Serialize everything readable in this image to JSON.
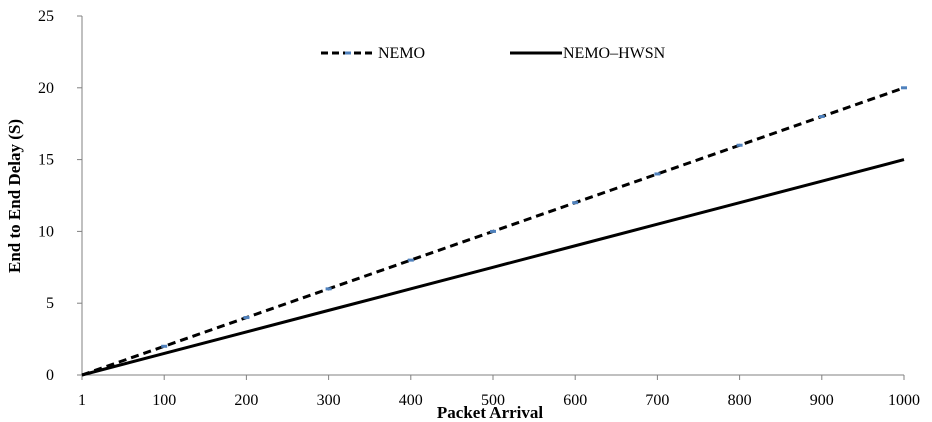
{
  "chart_data": {
    "type": "line",
    "title": "",
    "xlabel": "Packet Arrival",
    "ylabel": "End to End Delay (S)",
    "x_ticks": [
      "1",
      "100",
      "200",
      "300",
      "400",
      "500",
      "600",
      "700",
      "800",
      "900",
      "1000"
    ],
    "y_ticks": [
      "0",
      "5",
      "10",
      "15",
      "20",
      "25"
    ],
    "ylim": [
      0,
      25
    ],
    "grid": false,
    "legend_position": "top-center",
    "series": [
      {
        "name": "NEMO",
        "style": "dashed",
        "color": "#000000",
        "marker_color": "#4f81bd",
        "x": [
          1,
          100,
          200,
          300,
          400,
          500,
          600,
          700,
          800,
          900,
          1000
        ],
        "values": [
          0,
          2,
          4,
          6,
          8,
          10,
          12,
          14,
          16,
          18,
          20
        ]
      },
      {
        "name": "NEMO–HWSN",
        "style": "solid",
        "color": "#000000",
        "x": [
          1,
          100,
          200,
          300,
          400,
          500,
          600,
          700,
          800,
          900,
          1000
        ],
        "values": [
          0,
          1.5,
          3,
          4.5,
          6,
          7.5,
          9,
          10.5,
          12,
          13.5,
          15
        ]
      }
    ]
  }
}
